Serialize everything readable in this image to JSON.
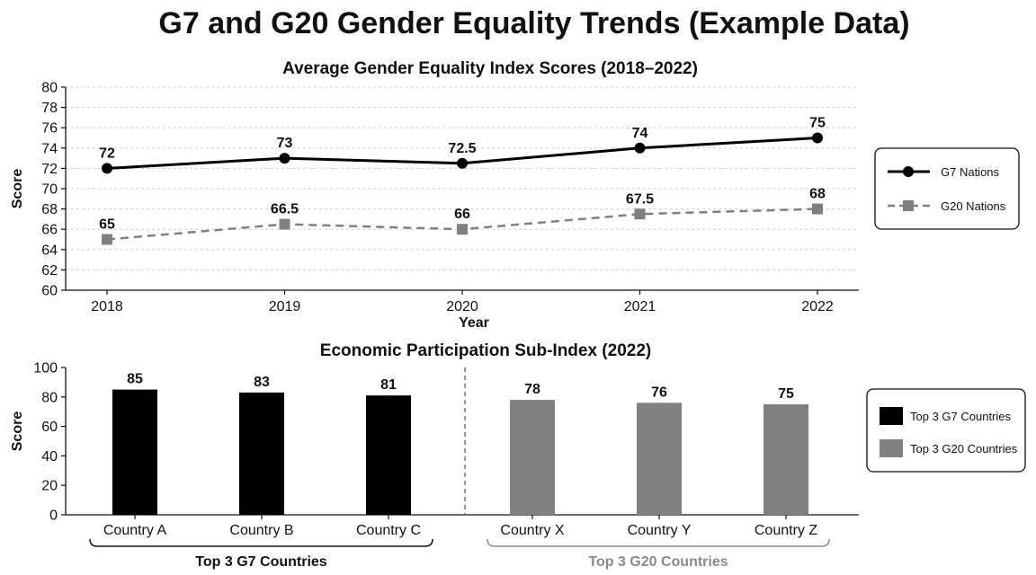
{
  "title": "G7 and G20 Gender Equality Trends (Example Data)",
  "colors": {
    "g7": "#000000",
    "g20": "#808080",
    "g20_group_label": "#8a8a8a"
  },
  "chart_data": [
    {
      "type": "line",
      "title": "Average Gender Equality Index Scores (2018–2022)",
      "xlabel": "Year",
      "ylabel": "Score",
      "x": [
        "2018",
        "2019",
        "2020",
        "2021",
        "2022"
      ],
      "ylim": [
        60,
        80
      ],
      "yticks": [
        60,
        62,
        64,
        66,
        68,
        70,
        72,
        74,
        76,
        78,
        80
      ],
      "grid": true,
      "legend_position": "right",
      "series": [
        {
          "name": "G7 Nations",
          "values": [
            72,
            73,
            72.5,
            74,
            75
          ],
          "labels": [
            "72",
            "73",
            "72.5",
            "74",
            "75"
          ],
          "style": "solid",
          "marker": "circle",
          "color": "#000000"
        },
        {
          "name": "G20 Nations",
          "values": [
            65,
            66.5,
            66,
            67.5,
            68
          ],
          "labels": [
            "65",
            "66.5",
            "66",
            "67.5",
            "68"
          ],
          "style": "dashed",
          "marker": "square",
          "color": "#808080"
        }
      ]
    },
    {
      "type": "bar",
      "title": "Economic Participation Sub-Index (2022)",
      "xlabel": "",
      "ylabel": "Score",
      "categories": [
        "Country A",
        "Country B",
        "Country C",
        "Country X",
        "Country Y",
        "Country Z"
      ],
      "values": [
        85,
        83,
        81,
        78,
        76,
        75
      ],
      "value_labels": [
        "85",
        "83",
        "81",
        "78",
        "76",
        "75"
      ],
      "ylim": [
        0,
        100
      ],
      "yticks": [
        0,
        20,
        40,
        60,
        80,
        100
      ],
      "grid": false,
      "legend_position": "right",
      "groups": [
        {
          "name": "Top 3 G7 Countries",
          "categories": [
            "Country A",
            "Country B",
            "Country C"
          ],
          "color": "#000000"
        },
        {
          "name": "Top 3 G20 Countries",
          "categories": [
            "Country X",
            "Country Y",
            "Country Z"
          ],
          "color": "#808080"
        }
      ],
      "group_labels": [
        "Top 3 G7 Countries",
        "Top 3 G20 Countries"
      ]
    }
  ]
}
